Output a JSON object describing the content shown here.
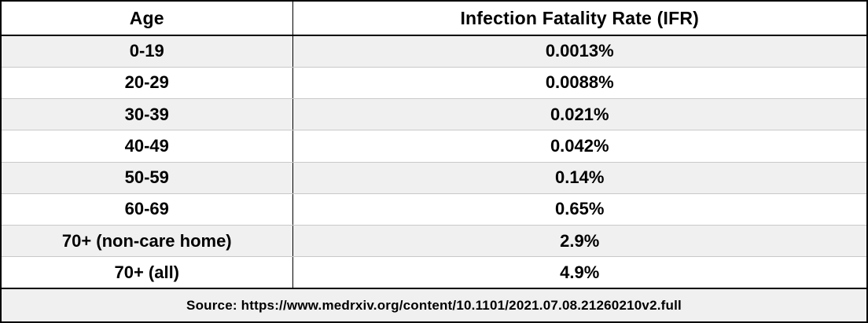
{
  "table": {
    "columns": [
      {
        "label": "Age"
      },
      {
        "label": "Infection Fatality Rate (IFR)"
      }
    ],
    "rows": [
      {
        "age": "0-19",
        "ifr": "0.0013%"
      },
      {
        "age": "20-29",
        "ifr": "0.0088%"
      },
      {
        "age": "30-39",
        "ifr": "0.021%"
      },
      {
        "age": "40-49",
        "ifr": "0.042%"
      },
      {
        "age": "50-59",
        "ifr": "0.14%"
      },
      {
        "age": "60-69",
        "ifr": "0.65%"
      },
      {
        "age": "70+ (non-care home)",
        "ifr": "2.9%"
      },
      {
        "age": "70+ (all)",
        "ifr": "4.9%"
      }
    ],
    "footer": "Source: https://www.medrxiv.org/content/10.1101/2021.07.08.21260210v2.full"
  },
  "chart_data": {
    "type": "table",
    "title": "",
    "columns": [
      "Age",
      "Infection Fatality Rate (IFR)"
    ],
    "categories": [
      "0-19",
      "20-29",
      "30-39",
      "40-49",
      "50-59",
      "60-69",
      "70+ (non-care home)",
      "70+ (all)"
    ],
    "values": [
      0.0013,
      0.0088,
      0.021,
      0.042,
      0.14,
      0.65,
      2.9,
      4.9
    ],
    "value_labels": [
      "0.0013%",
      "0.0088%",
      "0.021%",
      "0.042%",
      "0.14%",
      "0.65%",
      "2.9%",
      "4.9%"
    ],
    "value_unit": "%",
    "annotations": [
      "Source: https://www.medrxiv.org/content/10.1101/2021.07.08.21260210v2.full"
    ],
    "layout": {
      "stripe_color": "#f0f0f0",
      "border_color": "#000000",
      "row_separator_color": "#c9c9c9",
      "text_color": "#000000"
    }
  }
}
